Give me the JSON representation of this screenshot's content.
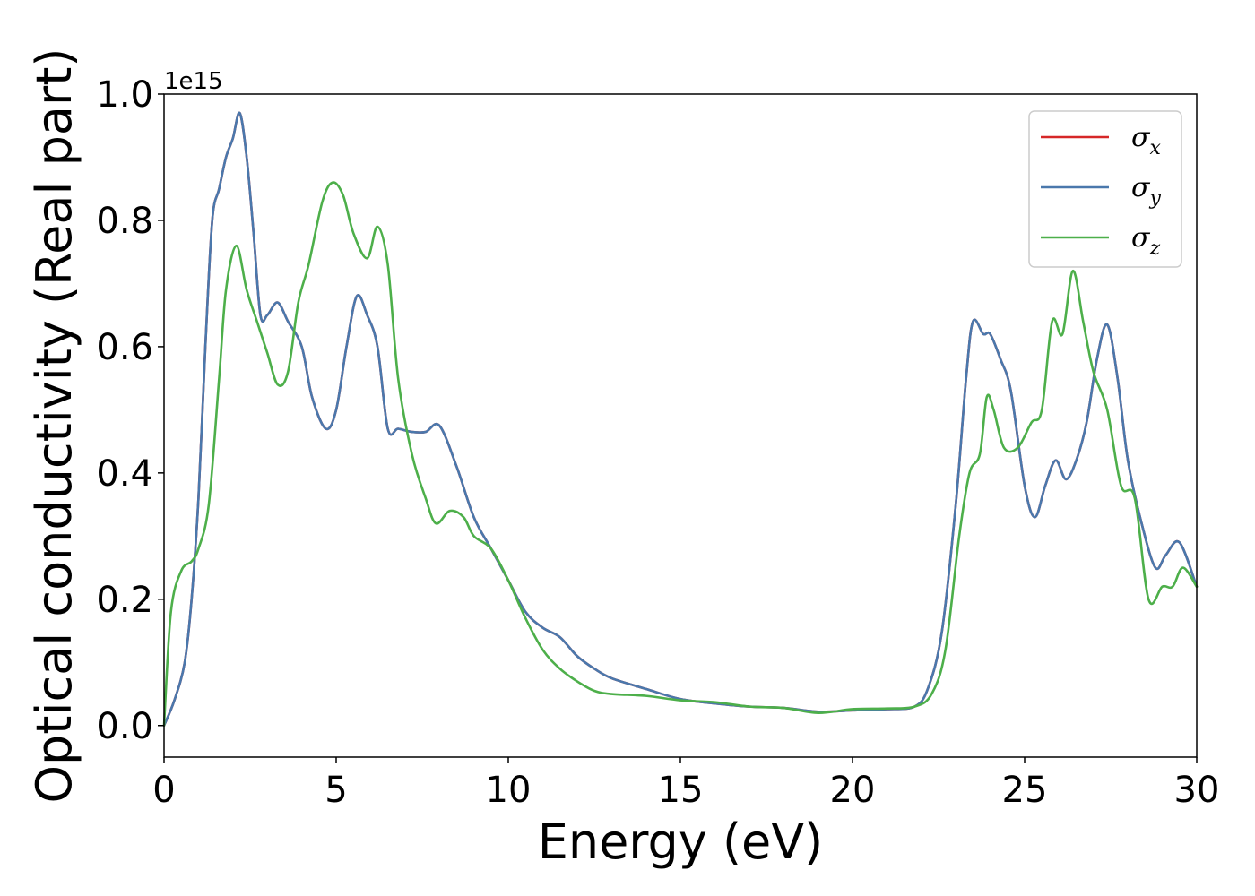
{
  "chart_data": {
    "type": "line",
    "xlabel": "Energy (eV)",
    "ylabel": "Optical conductivity (Real part)",
    "y_offset_label": "1e15",
    "xlim": [
      0,
      30
    ],
    "ylim": [
      -0.05,
      1.0
    ],
    "x_ticks": [
      0,
      5,
      10,
      15,
      20,
      25,
      30
    ],
    "y_ticks": [
      0.0,
      0.2,
      0.4,
      0.6,
      0.8,
      1.0
    ],
    "x_tick_labels": [
      "0",
      "5",
      "10",
      "15",
      "20",
      "25",
      "30"
    ],
    "y_tick_labels": [
      "0.0",
      "0.2",
      "0.4",
      "0.6",
      "0.8",
      "1.0"
    ],
    "grid": false,
    "legend_position": "top-right",
    "series": [
      {
        "name": "σx",
        "legend_base": "σ",
        "legend_sub": "x",
        "color": "#d62728",
        "x": [
          0,
          0.3,
          0.6,
          0.8,
          1.0,
          1.2,
          1.4,
          1.6,
          1.8,
          2.0,
          2.2,
          2.4,
          2.6,
          2.8,
          3.0,
          3.3,
          3.6,
          4.0,
          4.3,
          4.7,
          5.0,
          5.3,
          5.6,
          5.9,
          6.2,
          6.5,
          6.8,
          7.2,
          7.6,
          8.0,
          8.5,
          9.0,
          9.5,
          10.0,
          10.5,
          11.0,
          11.5,
          12.0,
          12.5,
          13.0,
          14.0,
          15.0,
          16.0,
          17.0,
          18.0,
          19.0,
          20.0,
          21.0,
          21.8,
          22.2,
          22.6,
          23.0,
          23.3,
          23.5,
          23.8,
          24.0,
          24.3,
          24.6,
          25.0,
          25.3,
          25.6,
          25.9,
          26.2,
          26.5,
          26.8,
          27.1,
          27.4,
          27.7,
          28.0,
          28.4,
          28.8,
          29.1,
          29.5,
          30.0
        ],
        "y": [
          0.0,
          0.04,
          0.1,
          0.2,
          0.36,
          0.6,
          0.8,
          0.85,
          0.9,
          0.93,
          0.97,
          0.9,
          0.78,
          0.65,
          0.65,
          0.67,
          0.64,
          0.6,
          0.52,
          0.47,
          0.5,
          0.6,
          0.68,
          0.65,
          0.6,
          0.47,
          0.47,
          0.465,
          0.465,
          0.475,
          0.41,
          0.33,
          0.28,
          0.23,
          0.18,
          0.155,
          0.14,
          0.11,
          0.09,
          0.075,
          0.058,
          0.042,
          0.035,
          0.03,
          0.028,
          0.022,
          0.024,
          0.026,
          0.03,
          0.06,
          0.15,
          0.35,
          0.55,
          0.64,
          0.62,
          0.62,
          0.58,
          0.53,
          0.38,
          0.33,
          0.38,
          0.42,
          0.39,
          0.42,
          0.48,
          0.58,
          0.635,
          0.55,
          0.42,
          0.32,
          0.25,
          0.27,
          0.29,
          0.22
        ]
      },
      {
        "name": "σy",
        "legend_base": "σ",
        "legend_sub": "y",
        "color": "#4a78ac",
        "x": [
          0,
          0.3,
          0.6,
          0.8,
          1.0,
          1.2,
          1.4,
          1.6,
          1.8,
          2.0,
          2.2,
          2.4,
          2.6,
          2.8,
          3.0,
          3.3,
          3.6,
          4.0,
          4.3,
          4.7,
          5.0,
          5.3,
          5.6,
          5.9,
          6.2,
          6.5,
          6.8,
          7.2,
          7.6,
          8.0,
          8.5,
          9.0,
          9.5,
          10.0,
          10.5,
          11.0,
          11.5,
          12.0,
          12.5,
          13.0,
          14.0,
          15.0,
          16.0,
          17.0,
          18.0,
          19.0,
          20.0,
          21.0,
          21.8,
          22.2,
          22.6,
          23.0,
          23.3,
          23.5,
          23.8,
          24.0,
          24.3,
          24.6,
          25.0,
          25.3,
          25.6,
          25.9,
          26.2,
          26.5,
          26.8,
          27.1,
          27.4,
          27.7,
          28.0,
          28.4,
          28.8,
          29.1,
          29.5,
          30.0
        ],
        "y": [
          0.0,
          0.04,
          0.1,
          0.2,
          0.36,
          0.6,
          0.8,
          0.85,
          0.9,
          0.93,
          0.97,
          0.9,
          0.78,
          0.65,
          0.65,
          0.67,
          0.64,
          0.6,
          0.52,
          0.47,
          0.5,
          0.6,
          0.68,
          0.65,
          0.6,
          0.47,
          0.47,
          0.465,
          0.465,
          0.475,
          0.41,
          0.33,
          0.28,
          0.23,
          0.18,
          0.155,
          0.14,
          0.11,
          0.09,
          0.075,
          0.058,
          0.042,
          0.035,
          0.03,
          0.028,
          0.022,
          0.024,
          0.026,
          0.03,
          0.06,
          0.15,
          0.35,
          0.55,
          0.64,
          0.62,
          0.62,
          0.58,
          0.53,
          0.38,
          0.33,
          0.38,
          0.42,
          0.39,
          0.42,
          0.48,
          0.58,
          0.635,
          0.55,
          0.42,
          0.32,
          0.25,
          0.27,
          0.29,
          0.22
        ]
      },
      {
        "name": "σz",
        "legend_base": "σ",
        "legend_sub": "z",
        "color": "#4daf4a",
        "x": [
          0,
          0.2,
          0.5,
          0.8,
          1.0,
          1.3,
          1.6,
          1.8,
          2.1,
          2.4,
          2.7,
          3.0,
          3.3,
          3.6,
          3.9,
          4.2,
          4.6,
          4.9,
          5.2,
          5.5,
          5.9,
          6.2,
          6.5,
          6.8,
          7.2,
          7.6,
          7.9,
          8.3,
          8.7,
          9.0,
          9.5,
          10.0,
          10.5,
          11.0,
          11.5,
          12.0,
          12.5,
          13.0,
          14.0,
          15.0,
          16.0,
          17.0,
          18.0,
          19.0,
          20.0,
          21.0,
          21.8,
          22.3,
          22.7,
          23.1,
          23.4,
          23.7,
          23.9,
          24.1,
          24.4,
          24.8,
          25.2,
          25.5,
          25.8,
          26.1,
          26.4,
          26.7,
          27.0,
          27.4,
          27.8,
          28.2,
          28.6,
          29.0,
          29.3,
          29.6,
          30.0
        ],
        "y": [
          0.0,
          0.18,
          0.245,
          0.26,
          0.28,
          0.35,
          0.55,
          0.69,
          0.76,
          0.69,
          0.64,
          0.59,
          0.54,
          0.56,
          0.67,
          0.73,
          0.83,
          0.86,
          0.84,
          0.78,
          0.74,
          0.79,
          0.73,
          0.55,
          0.43,
          0.36,
          0.32,
          0.34,
          0.33,
          0.3,
          0.28,
          0.23,
          0.17,
          0.12,
          0.09,
          0.07,
          0.055,
          0.05,
          0.047,
          0.04,
          0.037,
          0.03,
          0.028,
          0.02,
          0.026,
          0.027,
          0.03,
          0.05,
          0.12,
          0.3,
          0.4,
          0.43,
          0.52,
          0.5,
          0.44,
          0.44,
          0.48,
          0.5,
          0.64,
          0.62,
          0.72,
          0.64,
          0.56,
          0.5,
          0.38,
          0.36,
          0.2,
          0.22,
          0.22,
          0.25,
          0.22
        ]
      }
    ]
  }
}
